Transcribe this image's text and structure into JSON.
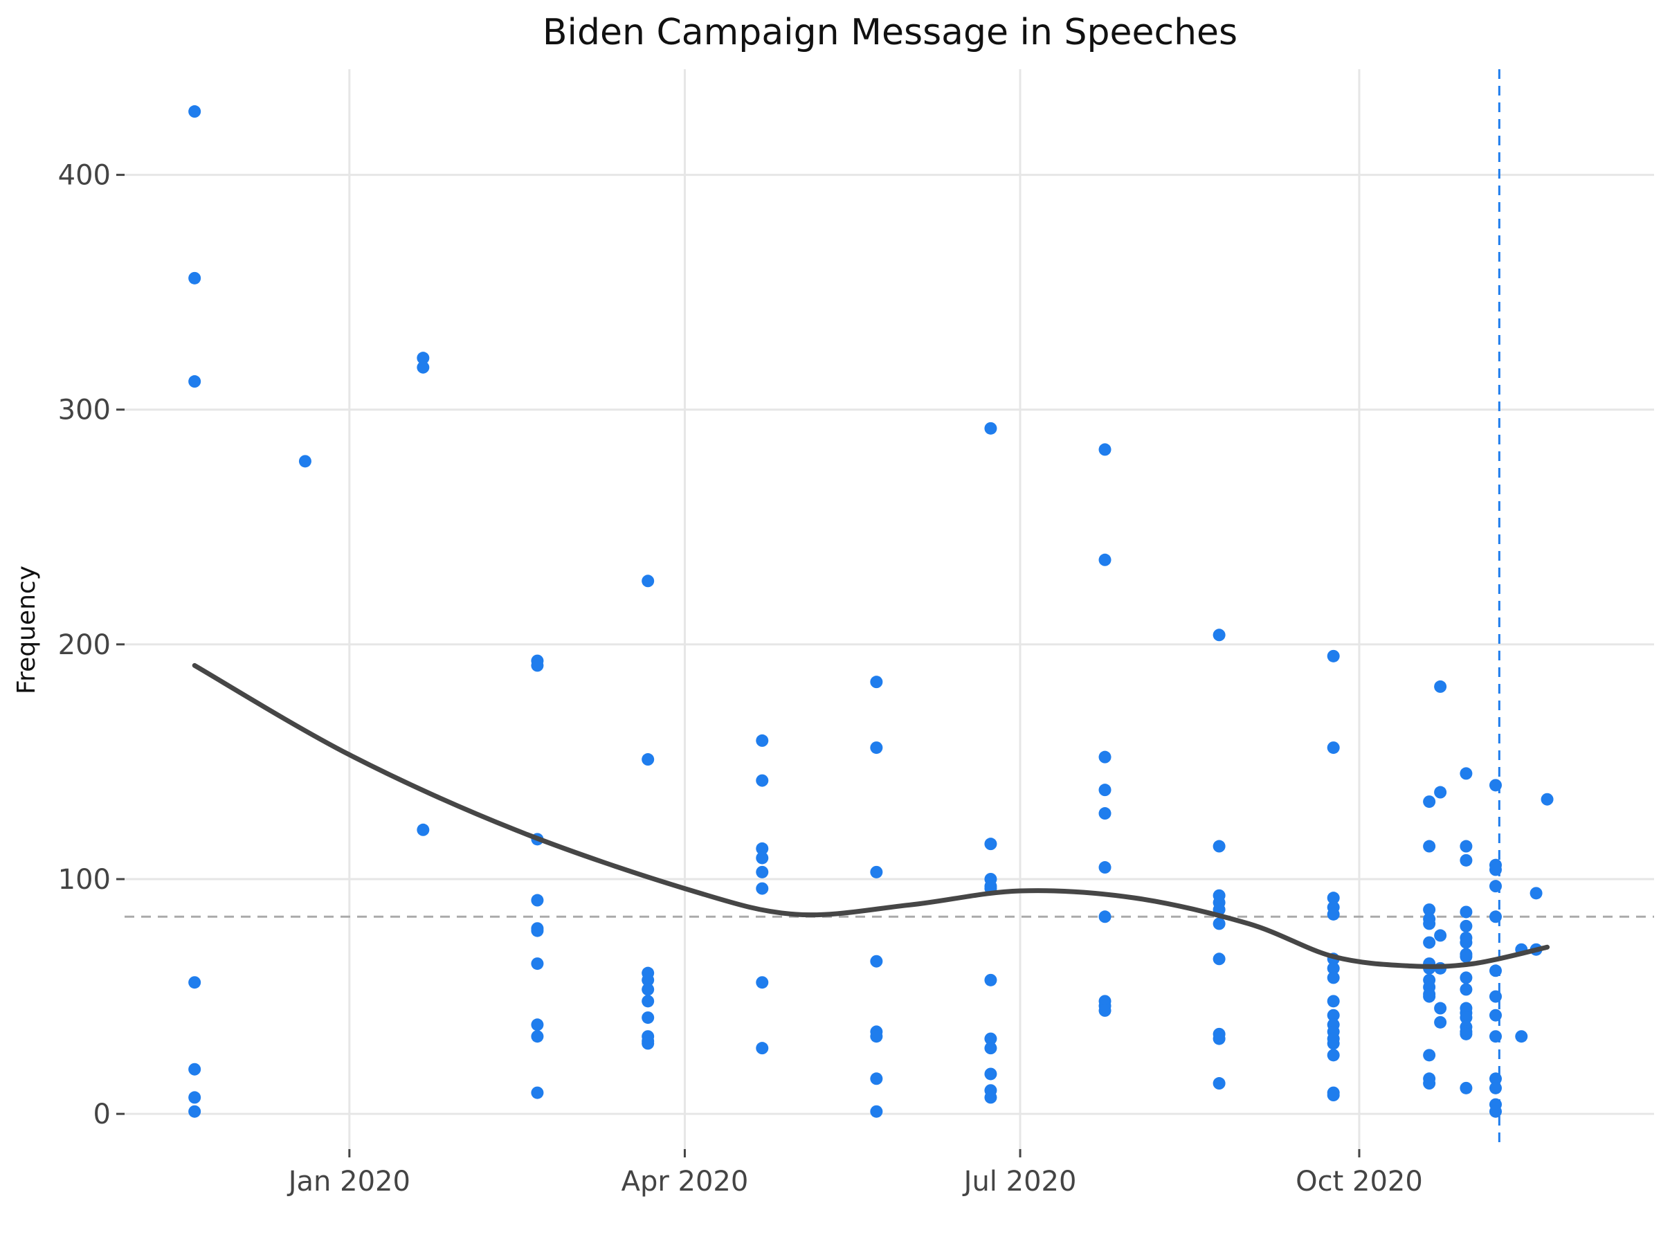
{
  "chart_data": {
    "type": "scatter",
    "title": "Biden Campaign Message in Speeches",
    "xlabel": "",
    "ylabel": "Frequency",
    "x_type": "date",
    "xlim": [
      "2019-11-01",
      "2020-12-20"
    ],
    "ylim": [
      -15,
      445
    ],
    "x_ticks": [
      {
        "date": "2020-01-01",
        "label": "Jan 2020"
      },
      {
        "date": "2020-04-01",
        "label": "Apr 2020"
      },
      {
        "date": "2020-07-01",
        "label": "Jul 2020"
      },
      {
        "date": "2020-10-01",
        "label": "Oct 2020"
      }
    ],
    "y_ticks": [
      0,
      100,
      200,
      300,
      400
    ],
    "grid": true,
    "reference_lines": {
      "horizontal_mean": 84,
      "vertical_date": "2020-11-08"
    },
    "colors": {
      "points": "#1f7ded",
      "trend": "#464646",
      "hline": "#aaaaaa",
      "vline": "#1f7ded",
      "grid": "#e6e6e6"
    },
    "series": [
      {
        "x": [
          "2019-11-20",
          "2019-11-20",
          "2019-11-20",
          "2019-11-20",
          "2019-11-20",
          "2019-11-20",
          "2019-11-20",
          "2019-12-20",
          "2020-01-21",
          "2020-01-21",
          "2020-01-21",
          "2020-02-21",
          "2020-02-21",
          "2020-02-21",
          "2020-02-21",
          "2020-02-21",
          "2020-02-21",
          "2020-02-21",
          "2020-02-21",
          "2020-02-21",
          "2020-02-21",
          "2020-03-22",
          "2020-03-22",
          "2020-03-22",
          "2020-03-22",
          "2020-03-22",
          "2020-03-22",
          "2020-03-22",
          "2020-03-22",
          "2020-03-22",
          "2020-03-22",
          "2020-04-22",
          "2020-04-22",
          "2020-04-22",
          "2020-04-22",
          "2020-04-22",
          "2020-04-22",
          "2020-04-22",
          "2020-04-22",
          "2020-05-23",
          "2020-05-23",
          "2020-05-23",
          "2020-05-23",
          "2020-05-23",
          "2020-05-23",
          "2020-05-23",
          "2020-05-23",
          "2020-06-23",
          "2020-06-23",
          "2020-06-23",
          "2020-06-23",
          "2020-06-23",
          "2020-06-23",
          "2020-06-23",
          "2020-06-23",
          "2020-06-23",
          "2020-06-23",
          "2020-06-23",
          "2020-07-24",
          "2020-07-24",
          "2020-07-24",
          "2020-07-24",
          "2020-07-24",
          "2020-07-24",
          "2020-07-24",
          "2020-07-24",
          "2020-07-24",
          "2020-07-24",
          "2020-08-24",
          "2020-08-24",
          "2020-08-24",
          "2020-08-24",
          "2020-08-24",
          "2020-08-24",
          "2020-08-24",
          "2020-08-24",
          "2020-08-24",
          "2020-08-24",
          "2020-09-24",
          "2020-09-24",
          "2020-09-24",
          "2020-09-24",
          "2020-09-24",
          "2020-09-24",
          "2020-09-24",
          "2020-09-24",
          "2020-09-24",
          "2020-09-24",
          "2020-09-24",
          "2020-09-24",
          "2020-09-24",
          "2020-09-24",
          "2020-09-24",
          "2020-09-24",
          "2020-09-24",
          "2020-10-20",
          "2020-10-20",
          "2020-10-20",
          "2020-10-20",
          "2020-10-20",
          "2020-10-20",
          "2020-10-20",
          "2020-10-20",
          "2020-10-20",
          "2020-10-20",
          "2020-10-20",
          "2020-10-20",
          "2020-10-20",
          "2020-10-20",
          "2020-10-20",
          "2020-10-23",
          "2020-10-23",
          "2020-10-23",
          "2020-10-23",
          "2020-10-23",
          "2020-10-23",
          "2020-10-30",
          "2020-10-30",
          "2020-10-30",
          "2020-10-30",
          "2020-10-30",
          "2020-10-30",
          "2020-10-30",
          "2020-10-30",
          "2020-10-30",
          "2020-10-30",
          "2020-10-30",
          "2020-10-30",
          "2020-10-30",
          "2020-10-30",
          "2020-10-30",
          "2020-10-30",
          "2020-10-30",
          "2020-10-30",
          "2020-11-07",
          "2020-11-07",
          "2020-11-07",
          "2020-11-07",
          "2020-11-07",
          "2020-11-07",
          "2020-11-07",
          "2020-11-07",
          "2020-11-07",
          "2020-11-07",
          "2020-11-07",
          "2020-11-07",
          "2020-11-07",
          "2020-11-14",
          "2020-11-14",
          "2020-11-18",
          "2020-11-18",
          "2020-11-21"
        ],
        "y": [
          427,
          356,
          312,
          56,
          19,
          7,
          1,
          278,
          322,
          318,
          121,
          193,
          191,
          117,
          91,
          79,
          78,
          64,
          38,
          33,
          9,
          227,
          151,
          60,
          57,
          53,
          48,
          41,
          33,
          31,
          30,
          159,
          142,
          113,
          109,
          103,
          96,
          56,
          28,
          184,
          156,
          103,
          65,
          35,
          33,
          15,
          1,
          292,
          115,
          100,
          97,
          57,
          32,
          28,
          17,
          10,
          7,
          96,
          283,
          236,
          152,
          138,
          128,
          105,
          84,
          48,
          46,
          44,
          204,
          114,
          93,
          90,
          87,
          81,
          66,
          34,
          32,
          13,
          195,
          156,
          92,
          88,
          85,
          66,
          62,
          58,
          48,
          42,
          38,
          35,
          32,
          30,
          25,
          9,
          8,
          133,
          114,
          87,
          83,
          81,
          73,
          64,
          62,
          57,
          54,
          51,
          50,
          25,
          15,
          13,
          182,
          137,
          76,
          62,
          45,
          39,
          145,
          114,
          108,
          86,
          80,
          75,
          73,
          68,
          67,
          58,
          53,
          45,
          43,
          41,
          37,
          35,
          34,
          11,
          140,
          106,
          104,
          97,
          84,
          61,
          50,
          42,
          33,
          15,
          11,
          4,
          1,
          70,
          33,
          94,
          70,
          134
        ]
      }
    ],
    "trend_line": {
      "x": [
        "2019-11-20",
        "2020-01-01",
        "2020-02-15",
        "2020-04-01",
        "2020-05-01",
        "2020-06-01",
        "2020-07-01",
        "2020-08-01",
        "2020-09-01",
        "2020-09-24",
        "2020-10-15",
        "2020-11-01",
        "2020-11-21"
      ],
      "y": [
        191,
        153,
        121,
        96,
        85,
        89,
        95,
        92,
        81,
        67,
        63,
        64,
        71
      ]
    }
  }
}
